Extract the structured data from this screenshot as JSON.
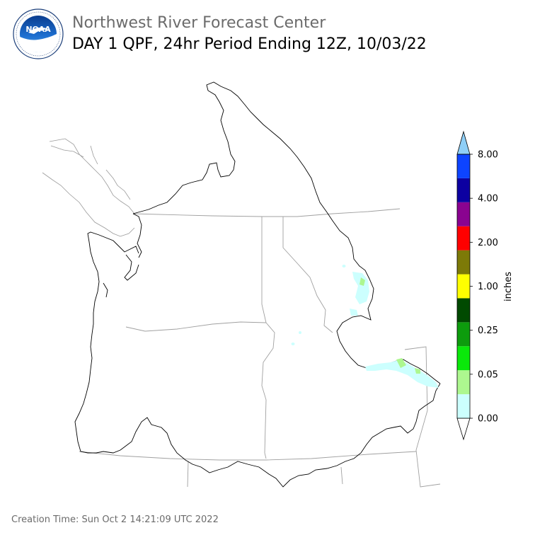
{
  "header": {
    "org_title": "Northwest River Forecast Center",
    "product_title": "DAY 1 QPF, 24hr Period Ending 12Z, 10/03/22"
  },
  "logo": {
    "icon": "noaa-logo-icon",
    "text": "NOAA",
    "ring_text": "NATIONAL OCEANIC AND ATMOSPHERIC ADMINISTRATION · U.S. DEPARTMENT OF COMMERCE"
  },
  "legend": {
    "unit_label": "inches",
    "tick_labels": [
      "0.00",
      "0.05",
      "0.25",
      "1.00",
      "2.00",
      "4.00",
      "8.00"
    ],
    "colors": [
      "#ffffff",
      "#ccfffe",
      "#adf78f",
      "#0ae80a",
      "#0d9c0d",
      "#014a01",
      "#ffff00",
      "#7d7a08",
      "#ff0000",
      "#8a0390",
      "#0c00a1",
      "#0d44ff",
      "#8fcff7"
    ]
  },
  "footer": {
    "creation_time": "Creation Time: Sun Oct 2 14:21:09 UTC 2022"
  }
}
